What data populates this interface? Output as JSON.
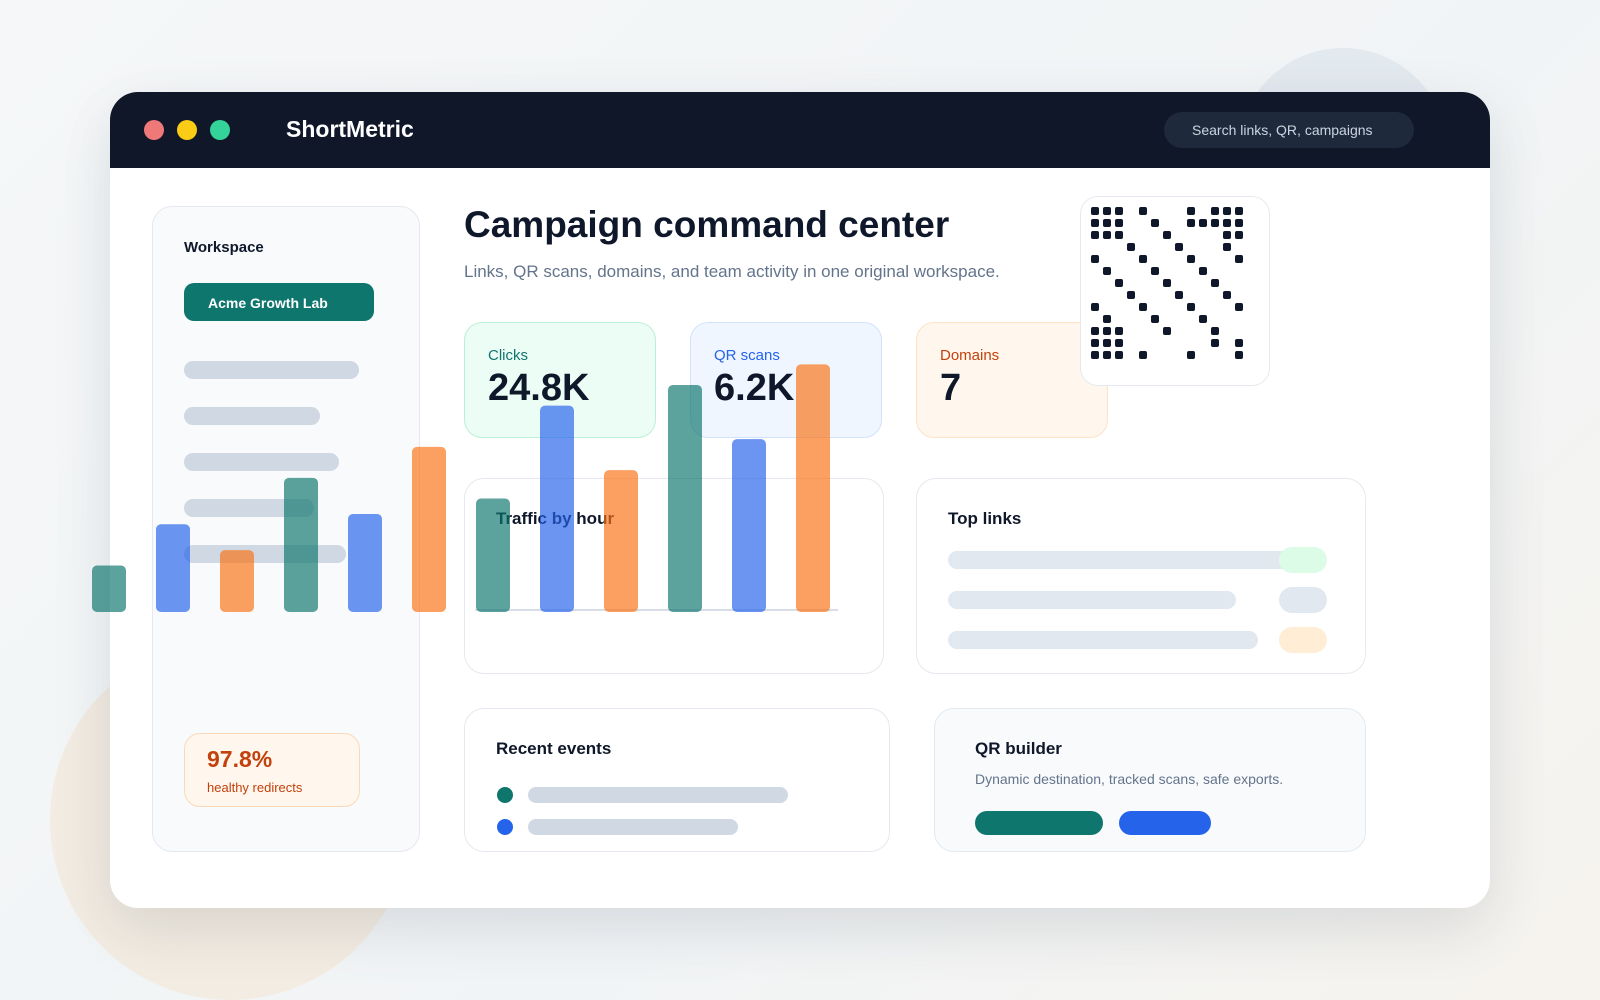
{
  "window": {
    "app_title": "ShortMetric",
    "search": {
      "placeholder": "Search links, QR, campaigns"
    },
    "control_colors": [
      "#ef7878",
      "#facc15",
      "#34d399"
    ]
  },
  "sidebar": {
    "label": "Workspace",
    "workspace_button": "Acme Growth Lab",
    "health": {
      "value": "97.8%",
      "label": "healthy redirects"
    }
  },
  "header": {
    "title": "Campaign command center",
    "subtitle": "Links, QR scans, domains, and team activity in one original workspace."
  },
  "stats": [
    {
      "label": "Clicks",
      "value": "24.8K",
      "color": "#0f766e"
    },
    {
      "label": "QR scans",
      "value": "6.2K",
      "color": "#2563eb"
    },
    {
      "label": "Domains",
      "value": "7",
      "color": "#c2410c"
    }
  ],
  "cards": {
    "traffic_title": "Traffic by hour",
    "top_links_title": "Top links",
    "events_title": "Recent events",
    "qr_builder_title": "QR builder",
    "qr_builder_desc": "Dynamic destination, tracked scans, safe exports."
  },
  "palette": {
    "teal": "#0f766e",
    "blue": "#2563eb",
    "orange": "#f97316"
  },
  "chart_data": {
    "type": "bar",
    "title": "",
    "xlabel": "",
    "ylabel": "",
    "ylim": [
      0,
      100
    ],
    "series": [
      {
        "values": [
          18,
          34,
          24,
          52,
          38,
          64,
          44,
          80,
          55,
          88,
          67,
          96
        ],
        "colors": [
          "#0f766e",
          "#2563eb",
          "#f97316",
          "#0f766e",
          "#2563eb",
          "#f97316",
          "#0f766e",
          "#2563eb",
          "#f97316",
          "#0f766e",
          "#2563eb",
          "#f97316"
        ]
      }
    ]
  }
}
